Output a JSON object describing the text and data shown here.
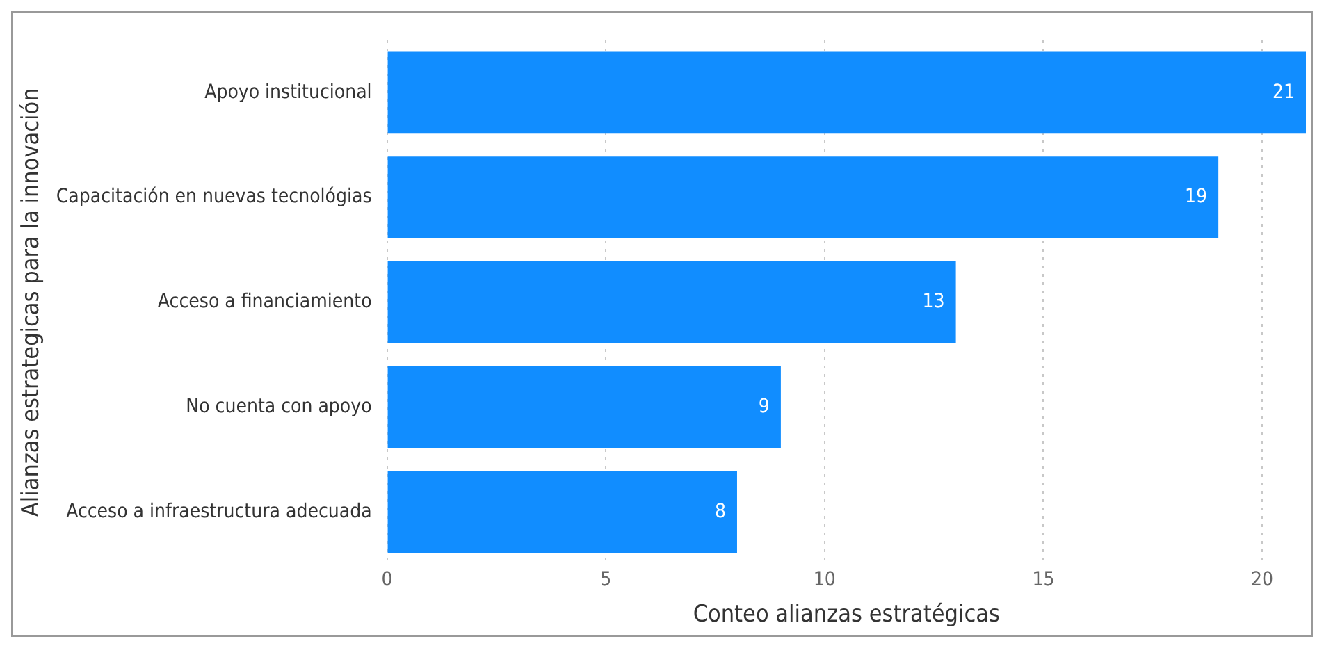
{
  "chart_data": {
    "type": "bar",
    "orientation": "horizontal",
    "xlabel": "Conteo alianzas estratégicas",
    "ylabel": "Alianzas estrategicas para la innovación",
    "categories": [
      "Apoyo institucional",
      "Capacitación en nuevas tecnológias",
      "Acceso a financiamiento",
      "No cuenta con apoyo",
      "Acceso a infraestructura adecuada"
    ],
    "values": [
      21,
      19,
      13,
      9,
      8
    ],
    "color": "#118dff",
    "xlim": [
      0,
      21
    ],
    "xticks": [
      0,
      5,
      10,
      15,
      20
    ],
    "grid": "x",
    "data_labels": true,
    "legend": false
  }
}
